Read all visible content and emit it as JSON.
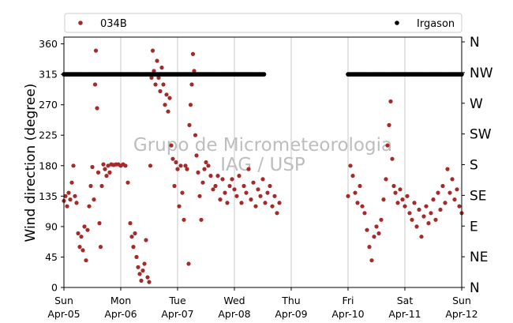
{
  "chart_data": {
    "type": "scatter",
    "ylabel": "Wind direction (degree)",
    "ylim": [
      0,
      370
    ],
    "yticks": [
      0,
      45,
      90,
      135,
      180,
      225,
      270,
      315,
      360
    ],
    "compass_labels": [
      "N",
      "NE",
      "E",
      "SE",
      "S",
      "SW",
      "W",
      "NW",
      "N"
    ],
    "xlim": [
      "2020-04-05",
      "2020-04-12"
    ],
    "xticks": [
      {
        "day": "Sun",
        "date": "Apr-05"
      },
      {
        "day": "Mon",
        "date": "Apr-06"
      },
      {
        "day": "Tue",
        "date": "Apr-07"
      },
      {
        "day": "Wed",
        "date": "Apr-08"
      },
      {
        "day": "Thu",
        "date": "Apr-09"
      },
      {
        "day": "Fri",
        "date": "Apr-10"
      },
      {
        "day": "Sat",
        "date": "Apr-11"
      },
      {
        "day": "Sun",
        "date": "Apr-12"
      }
    ],
    "grid": "vertical",
    "legend_position": "top",
    "watermark": [
      "Grupo de Micrometeorologia",
      "IAG / USP"
    ],
    "series": [
      {
        "name": "034B",
        "color": "#a52a2a",
        "marker": "dot",
        "points": [
          [
            "2020-04-05 00:00",
            128
          ],
          [
            "2020-04-05 00:40",
            135
          ],
          [
            "2020-04-05 01:20",
            120
          ],
          [
            "2020-04-05 02:00",
            140
          ],
          [
            "2020-04-05 02:40",
            130
          ],
          [
            "2020-04-05 03:20",
            155
          ],
          [
            "2020-04-05 04:00",
            180
          ],
          [
            "2020-04-05 04:40",
            135
          ],
          [
            "2020-04-05 05:20",
            125
          ],
          [
            "2020-04-05 06:00",
            80
          ],
          [
            "2020-04-05 06:40",
            60
          ],
          [
            "2020-04-05 07:20",
            75
          ],
          [
            "2020-04-05 08:00",
            55
          ],
          [
            "2020-04-05 08:40",
            90
          ],
          [
            "2020-04-05 09:20",
            40
          ],
          [
            "2020-04-05 10:00",
            85
          ],
          [
            "2020-04-05 10:40",
            120
          ],
          [
            "2020-04-05 11:20",
            150
          ],
          [
            "2020-04-05 12:00",
            178
          ],
          [
            "2020-04-05 12:40",
            130
          ],
          [
            "2020-04-05 13:10",
            300
          ],
          [
            "2020-04-05 13:30",
            350
          ],
          [
            "2020-04-05 14:00",
            265
          ],
          [
            "2020-04-05 14:30",
            170
          ],
          [
            "2020-04-05 15:00",
            95
          ],
          [
            "2020-04-05 15:30",
            60
          ],
          [
            "2020-04-05 16:00",
            150
          ],
          [
            "2020-04-05 16:40",
            182
          ],
          [
            "2020-04-05 17:20",
            175
          ],
          [
            "2020-04-05 18:00",
            165
          ],
          [
            "2020-04-05 18:40",
            180
          ],
          [
            "2020-04-05 19:20",
            170
          ],
          [
            "2020-04-05 20:00",
            182
          ],
          [
            "2020-04-05 21:00",
            181
          ],
          [
            "2020-04-05 22:00",
            182
          ],
          [
            "2020-04-05 23:00",
            182
          ],
          [
            "2020-04-06 00:00",
            180
          ],
          [
            "2020-04-06 01:00",
            182
          ],
          [
            "2020-04-06 02:00",
            180
          ],
          [
            "2020-04-06 03:00",
            155
          ],
          [
            "2020-04-06 04:00",
            95
          ],
          [
            "2020-04-06 04:40",
            75
          ],
          [
            "2020-04-06 05:20",
            60
          ],
          [
            "2020-04-06 06:00",
            80
          ],
          [
            "2020-04-06 06:40",
            45
          ],
          [
            "2020-04-06 07:20",
            30
          ],
          [
            "2020-04-06 08:00",
            20
          ],
          [
            "2020-04-06 08:40",
            10
          ],
          [
            "2020-04-06 09:20",
            25
          ],
          [
            "2020-04-06 10:00",
            35
          ],
          [
            "2020-04-06 10:40",
            70
          ],
          [
            "2020-04-06 11:20",
            15
          ],
          [
            "2020-04-06 12:00",
            8
          ],
          [
            "2020-04-06 12:30",
            180
          ],
          [
            "2020-04-06 13:00",
            310
          ],
          [
            "2020-04-06 13:30",
            350
          ],
          [
            "2020-04-06 14:00",
            320
          ],
          [
            "2020-04-06 14:40",
            300
          ],
          [
            "2020-04-06 15:20",
            335
          ],
          [
            "2020-04-06 16:00",
            310
          ],
          [
            "2020-04-06 16:40",
            290
          ],
          [
            "2020-04-06 17:20",
            325
          ],
          [
            "2020-04-06 18:00",
            300
          ],
          [
            "2020-04-06 18:40",
            270
          ],
          [
            "2020-04-06 19:20",
            285
          ],
          [
            "2020-04-06 20:00",
            260
          ],
          [
            "2020-04-06 20:40",
            280
          ],
          [
            "2020-04-06 21:20",
            210
          ],
          [
            "2020-04-06 22:00",
            190
          ],
          [
            "2020-04-06 22:40",
            150
          ],
          [
            "2020-04-06 23:20",
            185
          ],
          [
            "2020-04-07 00:00",
            175
          ],
          [
            "2020-04-07 00:40",
            120
          ],
          [
            "2020-04-07 01:20",
            180
          ],
          [
            "2020-04-07 02:00",
            140
          ],
          [
            "2020-04-07 02:40",
            100
          ],
          [
            "2020-04-07 03:20",
            180
          ],
          [
            "2020-04-07 04:00",
            175
          ],
          [
            "2020-04-07 04:40",
            35
          ],
          [
            "2020-04-07 05:00",
            240
          ],
          [
            "2020-04-07 05:30",
            270
          ],
          [
            "2020-04-07 06:00",
            300
          ],
          [
            "2020-04-07 06:30",
            345
          ],
          [
            "2020-04-07 07:00",
            320
          ],
          [
            "2020-04-07 07:30",
            225
          ],
          [
            "2020-04-07 08:00",
            195
          ],
          [
            "2020-04-07 08:40",
            170
          ],
          [
            "2020-04-07 09:20",
            135
          ],
          [
            "2020-04-07 10:00",
            100
          ],
          [
            "2020-04-07 10:40",
            155
          ],
          [
            "2020-04-07 11:20",
            175
          ],
          [
            "2020-04-07 12:00",
            185
          ],
          [
            "2020-04-07 13:00",
            180
          ],
          [
            "2020-04-07 14:00",
            165
          ],
          [
            "2020-04-07 15:00",
            145
          ],
          [
            "2020-04-07 16:00",
            150
          ],
          [
            "2020-04-07 17:00",
            165
          ],
          [
            "2020-04-07 18:00",
            130
          ],
          [
            "2020-04-07 19:00",
            160
          ],
          [
            "2020-04-07 20:00",
            140
          ],
          [
            "2020-04-07 21:00",
            125
          ],
          [
            "2020-04-07 22:00",
            150
          ],
          [
            "2020-04-07 23:00",
            160
          ],
          [
            "2020-04-08 00:00",
            145
          ],
          [
            "2020-04-08 01:00",
            135
          ],
          [
            "2020-04-08 02:00",
            165
          ],
          [
            "2020-04-08 03:00",
            125
          ],
          [
            "2020-04-08 04:00",
            150
          ],
          [
            "2020-04-08 05:00",
            140
          ],
          [
            "2020-04-08 06:00",
            175
          ],
          [
            "2020-04-08 07:00",
            130
          ],
          [
            "2020-04-08 08:00",
            155
          ],
          [
            "2020-04-08 09:00",
            120
          ],
          [
            "2020-04-08 10:00",
            145
          ],
          [
            "2020-04-08 11:00",
            135
          ],
          [
            "2020-04-08 12:00",
            160
          ],
          [
            "2020-04-08 13:00",
            125
          ],
          [
            "2020-04-08 14:00",
            140
          ],
          [
            "2020-04-08 15:00",
            150
          ],
          [
            "2020-04-08 16:00",
            120
          ],
          [
            "2020-04-08 17:00",
            135
          ],
          [
            "2020-04-08 18:00",
            110
          ],
          [
            "2020-04-08 19:00",
            125
          ],
          [
            "2020-04-10 00:00",
            135
          ],
          [
            "2020-04-10 01:00",
            180
          ],
          [
            "2020-04-10 02:00",
            165
          ],
          [
            "2020-04-10 03:00",
            140
          ],
          [
            "2020-04-10 04:00",
            125
          ],
          [
            "2020-04-10 05:00",
            150
          ],
          [
            "2020-04-10 06:00",
            120
          ],
          [
            "2020-04-10 07:00",
            110
          ],
          [
            "2020-04-10 08:00",
            85
          ],
          [
            "2020-04-10 09:00",
            60
          ],
          [
            "2020-04-10 10:00",
            40
          ],
          [
            "2020-04-10 11:00",
            75
          ],
          [
            "2020-04-10 12:00",
            90
          ],
          [
            "2020-04-10 13:00",
            80
          ],
          [
            "2020-04-10 14:00",
            100
          ],
          [
            "2020-04-10 15:00",
            130
          ],
          [
            "2020-04-10 16:00",
            160
          ],
          [
            "2020-04-10 16:40",
            210
          ],
          [
            "2020-04-10 17:20",
            240
          ],
          [
            "2020-04-10 18:00",
            275
          ],
          [
            "2020-04-10 18:40",
            190
          ],
          [
            "2020-04-10 19:20",
            150
          ],
          [
            "2020-04-10 20:00",
            140
          ],
          [
            "2020-04-10 21:00",
            125
          ],
          [
            "2020-04-10 22:00",
            145
          ],
          [
            "2020-04-10 23:00",
            130
          ],
          [
            "2020-04-11 00:00",
            120
          ],
          [
            "2020-04-11 01:00",
            135
          ],
          [
            "2020-04-11 02:00",
            110
          ],
          [
            "2020-04-11 03:00",
            100
          ],
          [
            "2020-04-11 04:00",
            125
          ],
          [
            "2020-04-11 05:00",
            90
          ],
          [
            "2020-04-11 06:00",
            115
          ],
          [
            "2020-04-11 07:00",
            75
          ],
          [
            "2020-04-11 08:00",
            105
          ],
          [
            "2020-04-11 09:00",
            120
          ],
          [
            "2020-04-11 10:00",
            95
          ],
          [
            "2020-04-11 11:00",
            110
          ],
          [
            "2020-04-11 12:00",
            130
          ],
          [
            "2020-04-11 13:00",
            100
          ],
          [
            "2020-04-11 14:00",
            140
          ],
          [
            "2020-04-11 15:00",
            115
          ],
          [
            "2020-04-11 16:00",
            150
          ],
          [
            "2020-04-11 17:00",
            125
          ],
          [
            "2020-04-11 18:00",
            175
          ],
          [
            "2020-04-11 19:00",
            140
          ],
          [
            "2020-04-11 20:00",
            160
          ],
          [
            "2020-04-11 21:00",
            130
          ],
          [
            "2020-04-11 22:00",
            145
          ],
          [
            "2020-04-11 23:00",
            120
          ],
          [
            "2020-04-12 00:00",
            110
          ]
        ]
      },
      {
        "name": "Irgason",
        "color": "#000000",
        "marker": "dot",
        "ranges": [
          {
            "start": "2020-04-05 00:00",
            "end": "2020-04-08 12:45",
            "value": 315
          },
          {
            "start": "2020-04-10 00:00",
            "end": "2020-04-12 00:00",
            "value": 315
          }
        ]
      }
    ]
  }
}
